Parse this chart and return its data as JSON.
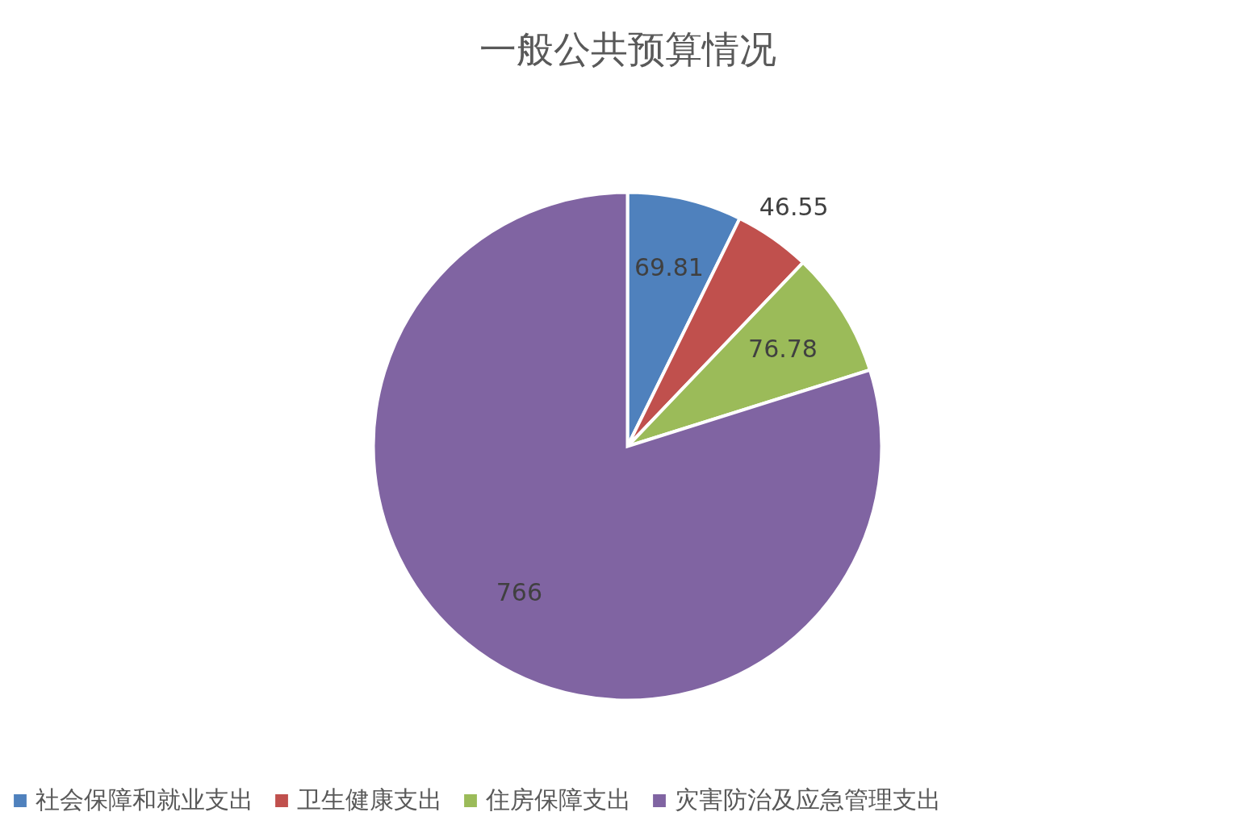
{
  "chart_data": {
    "type": "pie",
    "title": "一般公共预算情况",
    "categories": [
      "社会保障和就业支出",
      "卫生健康支出",
      "住房保障支出",
      "灾害防治及应急管理支出"
    ],
    "values": [
      69.81,
      46.55,
      76.78,
      766
    ],
    "colors": [
      "#4f81bd",
      "#c0504d",
      "#9bbb59",
      "#8064a2"
    ],
    "data_labels": true,
    "legend": "bottom"
  }
}
